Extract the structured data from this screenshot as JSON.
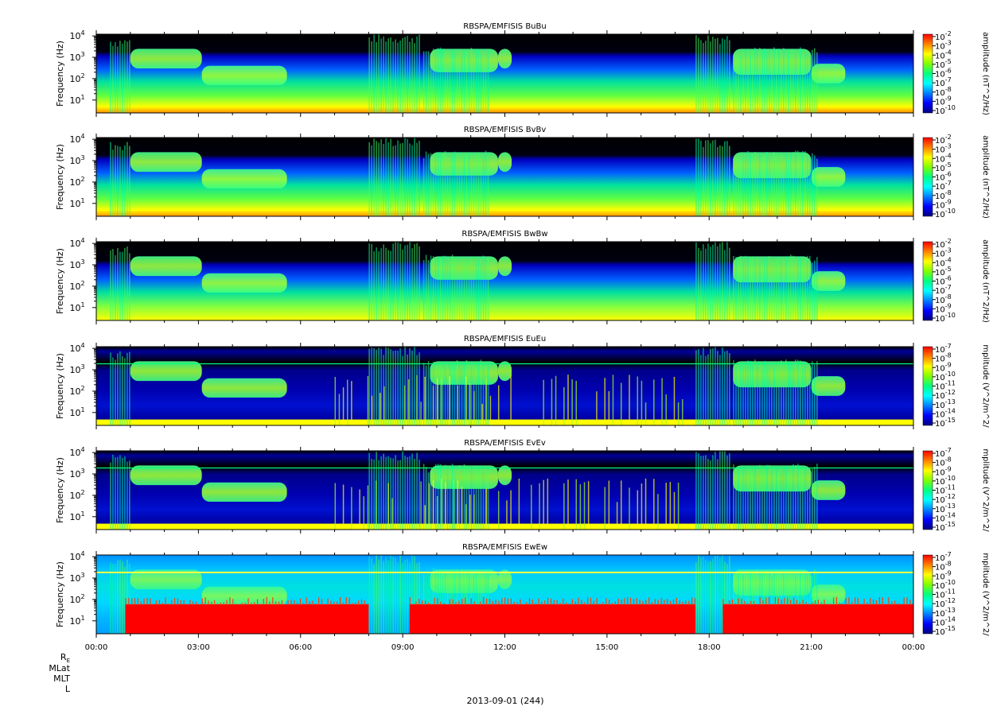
{
  "chart_data": {
    "type": "heatmap",
    "x_ticks": [
      "00:00",
      "03:00",
      "06:00",
      "09:00",
      "12:00",
      "15:00",
      "18:00",
      "21:00",
      "00:00"
    ],
    "x_range_hours": [
      0,
      24
    ],
    "y_ticks_exponents": [
      1,
      2,
      3,
      4
    ],
    "y_tick_base": "10",
    "ylim_hz": [
      2.5,
      12000
    ],
    "y_scale": "log",
    "grid": false,
    "panels": [
      {
        "title": "RBSPA/EMFISIS  BuBu",
        "ylabel": "Frequency (Hz)",
        "cbar_label": "amplitude (nT^2/Hz)",
        "cbar_exponents": [
          -2,
          -3,
          -4,
          -5,
          -6,
          -7,
          -8,
          -9,
          -10
        ],
        "kind": "B"
      },
      {
        "title": "RBSPA/EMFISIS  BvBv",
        "ylabel": "Frequency (Hz)",
        "cbar_label": "amplitude (nT^2/Hz)",
        "cbar_exponents": [
          -2,
          -3,
          -4,
          -5,
          -6,
          -7,
          -8,
          -9,
          -10
        ],
        "kind": "B"
      },
      {
        "title": "RBSPA/EMFISIS  BwBw",
        "ylabel": "Frequency (Hz)",
        "cbar_label": "amplitude (nT^2/Hz)",
        "cbar_exponents": [
          -2,
          -3,
          -4,
          -5,
          -6,
          -7,
          -8,
          -9,
          -10
        ],
        "kind": "Bw"
      },
      {
        "title": "RBSPA/EMFISIS  EuEu",
        "ylabel": "Frequency (Hz)",
        "cbar_label": "mplitude (V^2/m^2/",
        "cbar_exponents": [
          -7,
          -8,
          -9,
          -10,
          -11,
          -12,
          -13,
          -14,
          -15
        ],
        "kind": "E"
      },
      {
        "title": "RBSPA/EMFISIS  EvEv",
        "ylabel": "Frequency (Hz)",
        "cbar_label": "mplitude (V^2/m^2/",
        "cbar_exponents": [
          -7,
          -8,
          -9,
          -10,
          -11,
          -12,
          -13,
          -14,
          -15
        ],
        "kind": "E"
      },
      {
        "title": "RBSPA/EMFISIS  EwEw",
        "ylabel": "Frequency (Hz)",
        "cbar_label": "mplitude (V^2/m^2/",
        "cbar_exponents": [
          -7,
          -8,
          -9,
          -10,
          -11,
          -12,
          -13,
          -14,
          -15
        ],
        "kind": "Ew"
      }
    ],
    "colormap": [
      "#000080",
      "#0000ff",
      "#0080ff",
      "#00ffff",
      "#00ff80",
      "#80ff00",
      "#ffff00",
      "#ff8000",
      "#ff0000"
    ],
    "bottom_labels": {
      "re_main": "R",
      "re_sub": "E",
      "mlat": "MLat",
      "mlt": "MLT",
      "l": "L"
    },
    "date_label": "2013-09-01 (244)"
  }
}
